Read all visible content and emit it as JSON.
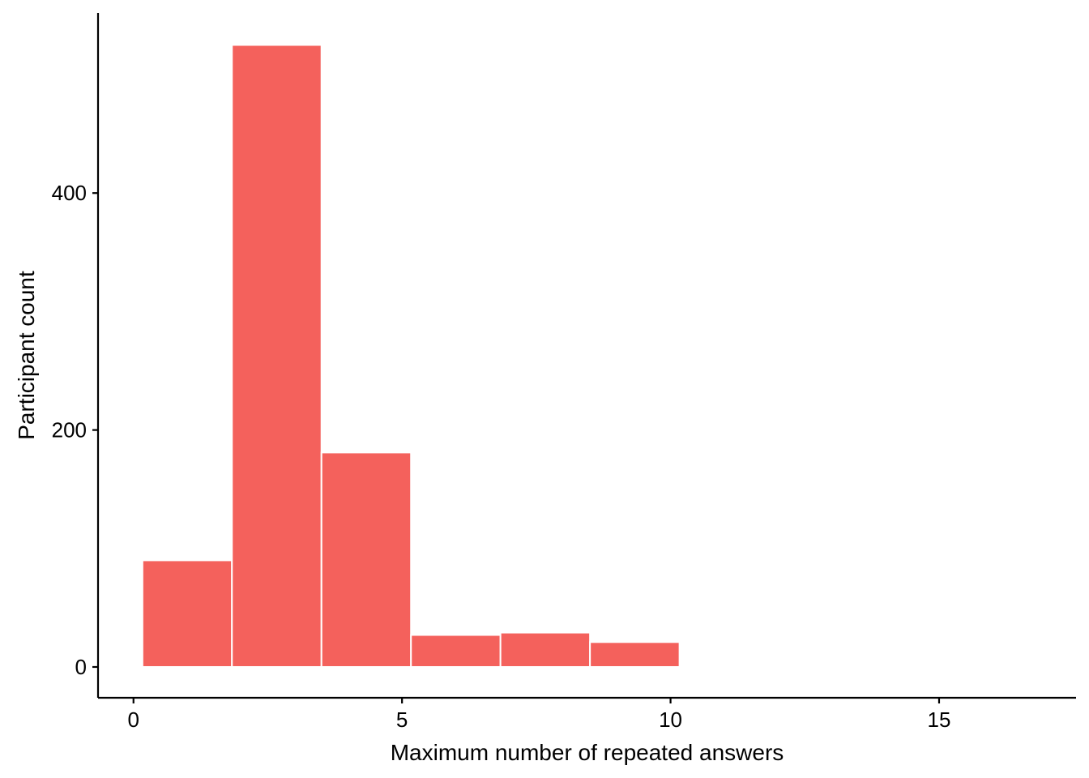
{
  "chart_data": {
    "type": "bar",
    "subtype": "histogram",
    "title": "",
    "xlabel": "Maximum number of repeated answers",
    "ylabel": "Participant count",
    "xlim": [
      -0.66,
      17.55
    ],
    "ylim": [
      -26,
      552
    ],
    "x_ticks": [
      0,
      5,
      10,
      15
    ],
    "y_ticks": [
      0,
      200,
      400
    ],
    "bin_width": 1.667,
    "bins": [
      {
        "start": 0.167,
        "end": 1.833,
        "count": 90
      },
      {
        "start": 1.833,
        "end": 3.5,
        "count": 525
      },
      {
        "start": 3.5,
        "end": 5.167,
        "count": 181
      },
      {
        "start": 5.167,
        "end": 6.833,
        "count": 27
      },
      {
        "start": 6.833,
        "end": 8.5,
        "count": 29
      },
      {
        "start": 8.5,
        "end": 10.167,
        "count": 21
      },
      {
        "start": 10.167,
        "end": 11.833,
        "count": 0
      },
      {
        "start": 11.833,
        "end": 13.5,
        "count": 0
      },
      {
        "start": 13.5,
        "end": 15.167,
        "count": 1
      }
    ],
    "grid": false,
    "legend": "none",
    "colors": {
      "bar_fill": "#F4615C",
      "bar_outline": "#FFFFFF",
      "axis": "#000000"
    }
  }
}
